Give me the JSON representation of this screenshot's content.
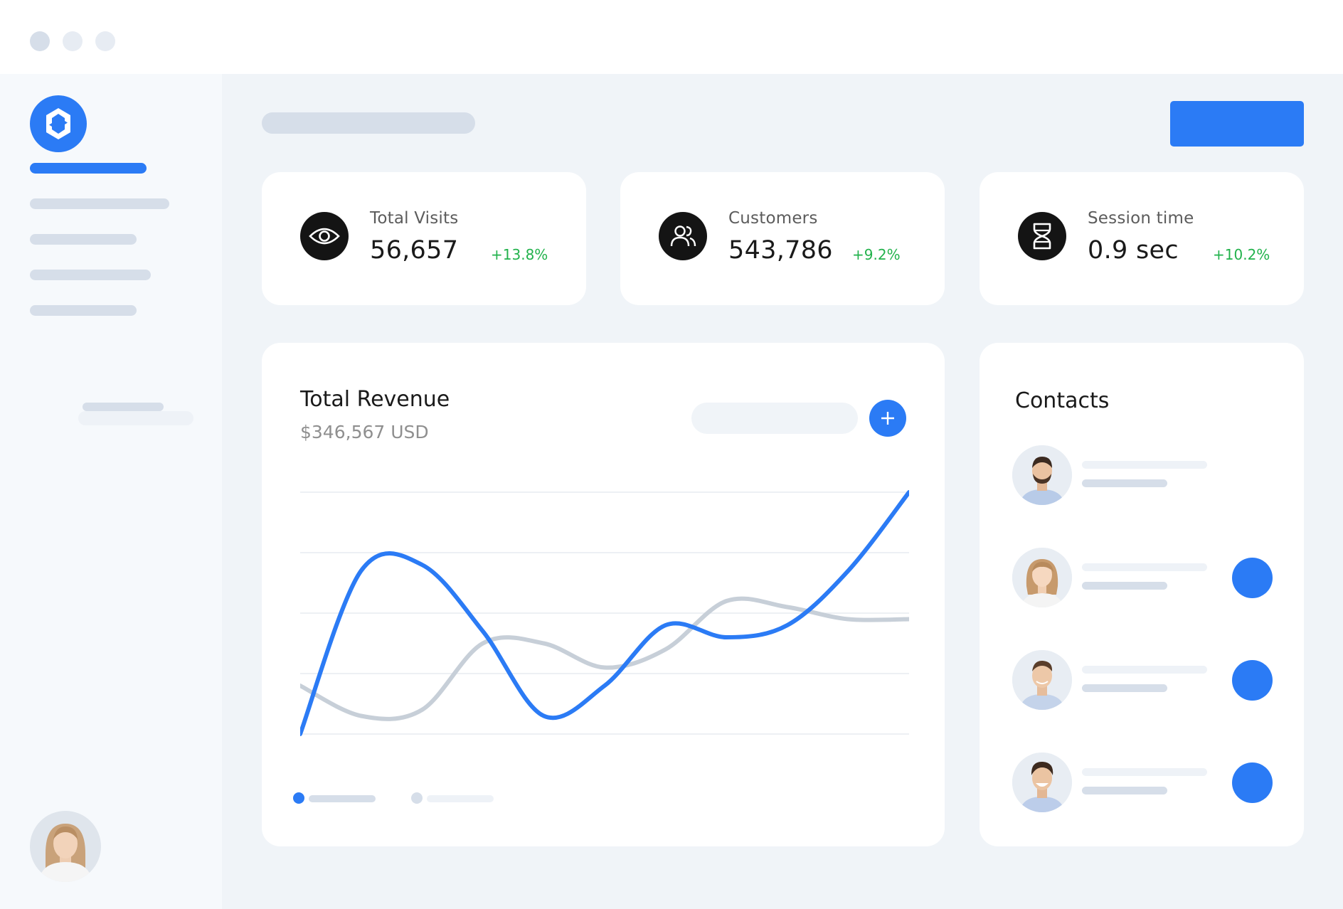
{
  "colors": {
    "accent": "#2b7bf5",
    "positive": "#22b24c",
    "secondary_series": "#c7cfd8",
    "placeholder": "#d6dee9"
  },
  "stats": [
    {
      "icon": "eye-icon",
      "label": "Total Visits",
      "value": "56,657",
      "delta": "+13.8%"
    },
    {
      "icon": "users-icon",
      "label": "Customers",
      "value": "543,786",
      "delta": "+9.2%"
    },
    {
      "icon": "hourglass-icon",
      "label": "Session time",
      "value": "0.9 sec",
      "delta": "+10.2%"
    }
  ],
  "revenue": {
    "title": "Total Revenue",
    "subtitle": "$346,567 USD",
    "add_icon": "plus-icon"
  },
  "chart_data": {
    "type": "line",
    "x": [
      0,
      1,
      2,
      3,
      4,
      5,
      6,
      7,
      8,
      9,
      10
    ],
    "series": [
      {
        "values": [
          0.0,
          2.7,
          2.8,
          1.7,
          0.3,
          0.8,
          1.8,
          1.6,
          1.8,
          2.7,
          4.0
        ],
        "color": "#2b7bf5"
      },
      {
        "values": [
          0.8,
          0.3,
          0.4,
          1.5,
          1.5,
          1.1,
          1.4,
          2.2,
          2.1,
          1.9,
          1.9
        ],
        "color": "#c7cfd8"
      }
    ],
    "ylim": [
      0,
      4
    ],
    "grid": true,
    "legend": "bottom-left"
  },
  "contacts": {
    "title": "Contacts",
    "items": [
      {
        "avatar": "man-beard",
        "has_action": false
      },
      {
        "avatar": "woman-blonde",
        "has_action": true
      },
      {
        "avatar": "man-smile",
        "has_action": true
      },
      {
        "avatar": "man-laugh",
        "has_action": true
      }
    ]
  }
}
